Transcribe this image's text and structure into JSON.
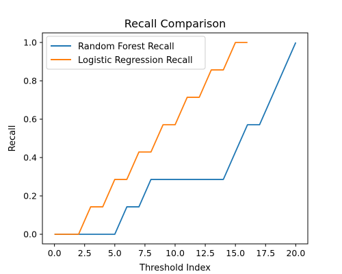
{
  "chart_data": {
    "type": "line",
    "title": "Recall Comparison",
    "xlabel": "Threshold Index",
    "ylabel": "Recall",
    "xlim": [
      -1.0,
      21.0
    ],
    "ylim": [
      -0.05,
      1.05
    ],
    "xticks": [
      0.0,
      2.5,
      5.0,
      7.5,
      10.0,
      12.5,
      15.0,
      17.5,
      20.0
    ],
    "xtick_labels": [
      "0.0",
      "2.5",
      "5.0",
      "7.5",
      "10.0",
      "12.5",
      "15.0",
      "17.5",
      "20.0"
    ],
    "yticks": [
      0.0,
      0.2,
      0.4,
      0.6,
      0.8,
      1.0
    ],
    "ytick_labels": [
      "0.0",
      "0.2",
      "0.4",
      "0.6",
      "0.8",
      "1.0"
    ],
    "grid": false,
    "legend_position": "top-left",
    "series": [
      {
        "name": "Random Forest Recall",
        "color": "#1f77b4",
        "x": [
          0,
          1,
          2,
          3,
          4,
          5,
          6,
          7,
          8,
          9,
          10,
          11,
          12,
          13,
          14,
          15,
          16,
          17,
          18,
          19,
          20
        ],
        "values": [
          0.0,
          0.0,
          0.0,
          0.0,
          0.0,
          0.0,
          0.143,
          0.143,
          0.286,
          0.286,
          0.286,
          0.286,
          0.286,
          0.286,
          0.286,
          0.429,
          0.571,
          0.571,
          0.714,
          0.857,
          1.0
        ]
      },
      {
        "name": "Logistic Regression Recall",
        "color": "#ff7f0e",
        "x": [
          0,
          1,
          2,
          3,
          4,
          5,
          6,
          7,
          8,
          9,
          10,
          11,
          12,
          13,
          14,
          15,
          16
        ],
        "values": [
          0.0,
          0.0,
          0.0,
          0.143,
          0.143,
          0.286,
          0.286,
          0.429,
          0.429,
          0.571,
          0.571,
          0.714,
          0.714,
          0.857,
          0.857,
          1.0,
          1.0
        ]
      }
    ]
  }
}
